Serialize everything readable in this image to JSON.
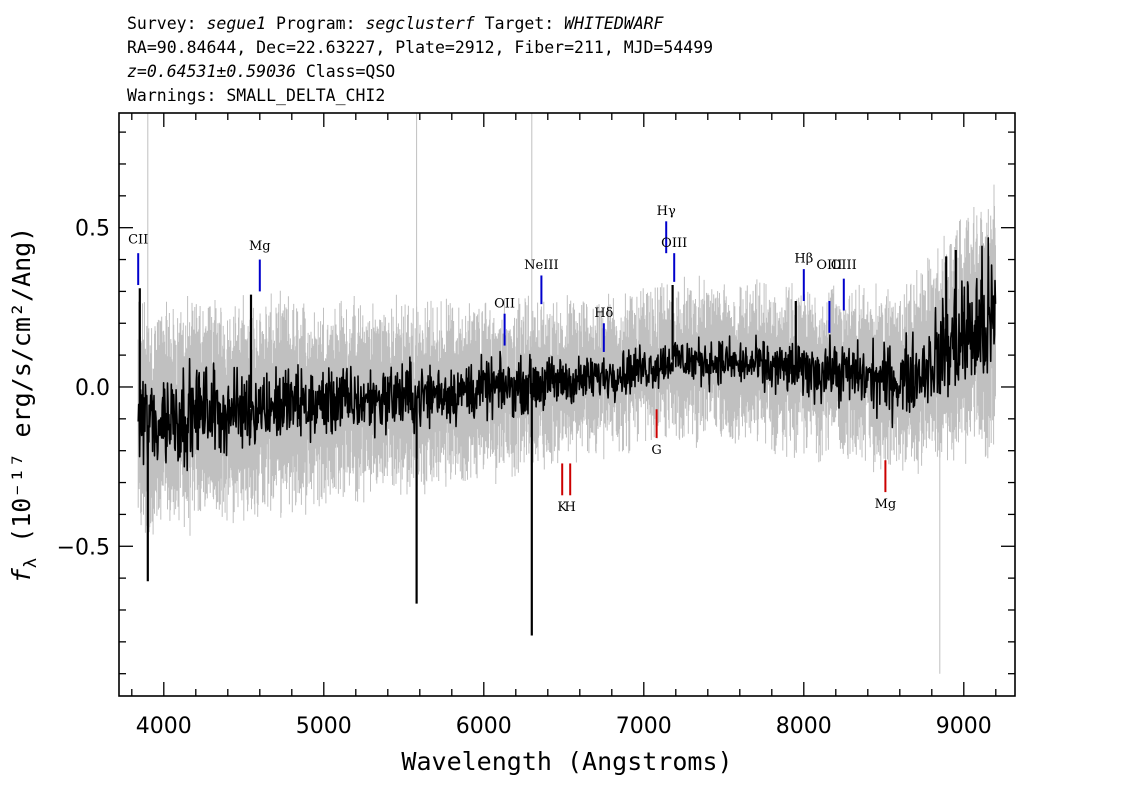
{
  "header": {
    "survey_label": "Survey:",
    "survey": "segue1",
    "program_label": "Program:",
    "program": "segclusterf",
    "target_label": "Target:",
    "target": "WHITEDWARF",
    "line2": "RA=90.84644, Dec=22.63227, Plate=2912, Fiber=211, MJD=54499",
    "redshift": "z=0.64531±0.59036",
    "class_text": "Class=QSO",
    "warnings": "Warnings: SMALL_DELTA_CHI2"
  },
  "chart_data": {
    "type": "line",
    "xlabel": "Wavelength (Angstroms)",
    "ylabel_prefix": "f",
    "ylabel_sub": "λ",
    "ylabel_units": " (10⁻¹⁷ erg/s/cm²/Ang)",
    "xlim": [
      3720,
      9320
    ],
    "ylim": [
      -0.97,
      0.86
    ],
    "x_ticks": [
      4000,
      5000,
      6000,
      7000,
      8000,
      9000
    ],
    "x_tick_labels": [
      "4000",
      "5000",
      "6000",
      "7000",
      "8000",
      "9000"
    ],
    "y_ticks": [
      -0.5,
      0.0,
      0.5
    ],
    "y_tick_labels": [
      "−0.5",
      "0.0",
      "0.5"
    ],
    "x_minor_step": 200,
    "y_minor_step": 0.1,
    "colors": {
      "flux": "#000000",
      "error": "#c0c0c0",
      "emission": "#0000cc",
      "absorption": "#cc0000"
    },
    "series": [
      {
        "role": "flux",
        "x": [
          3840,
          3900,
          4000,
          4100,
          4200,
          4300,
          4400,
          4500,
          4600,
          4700,
          4800,
          4900,
          5000,
          5100,
          5200,
          5300,
          5400,
          5500,
          5600,
          5700,
          5800,
          5900,
          6000,
          6100,
          6200,
          6300,
          6400,
          6500,
          6600,
          6700,
          6800,
          6900,
          7000,
          7100,
          7200,
          7300,
          7400,
          7500,
          7600,
          7700,
          7800,
          7900,
          8000,
          8100,
          8200,
          8300,
          8400,
          8500,
          8600,
          8700,
          8800,
          8900,
          9000,
          9100,
          9200
        ],
        "y": [
          -0.08,
          -0.12,
          -0.1,
          -0.09,
          -0.08,
          -0.07,
          -0.08,
          -0.07,
          -0.06,
          -0.06,
          -0.05,
          -0.06,
          -0.05,
          -0.04,
          -0.05,
          -0.04,
          -0.03,
          -0.03,
          -0.03,
          -0.02,
          -0.02,
          -0.01,
          -0.01,
          0.0,
          0.0,
          0.01,
          0.01,
          0.02,
          0.02,
          0.03,
          0.04,
          0.05,
          0.06,
          0.07,
          0.09,
          0.08,
          0.08,
          0.08,
          0.07,
          0.07,
          0.06,
          0.06,
          0.05,
          0.05,
          0.05,
          0.04,
          0.03,
          0.02,
          0.02,
          0.04,
          0.08,
          0.12,
          0.16,
          0.18,
          0.2
        ],
        "noise": [
          0.12,
          0.15,
          0.14,
          0.13,
          0.12,
          0.12,
          0.11,
          0.11,
          0.1,
          0.1,
          0.1,
          0.1,
          0.1,
          0.09,
          0.09,
          0.09,
          0.09,
          0.09,
          0.09,
          0.08,
          0.08,
          0.08,
          0.08,
          0.07,
          0.07,
          0.07,
          0.07,
          0.07,
          0.06,
          0.06,
          0.06,
          0.06,
          0.06,
          0.06,
          0.06,
          0.06,
          0.06,
          0.06,
          0.06,
          0.06,
          0.07,
          0.07,
          0.07,
          0.08,
          0.08,
          0.08,
          0.09,
          0.09,
          0.1,
          0.1,
          0.12,
          0.15,
          0.17,
          0.19,
          0.21
        ]
      },
      {
        "role": "error",
        "x": [
          3840,
          4000,
          4500,
          5000,
          5500,
          6000,
          6500,
          7000,
          7500,
          8000,
          8500,
          8800,
          9000,
          9200
        ],
        "y": [
          0.28,
          0.27,
          0.25,
          0.23,
          0.21,
          0.19,
          0.17,
          0.16,
          0.16,
          0.17,
          0.2,
          0.24,
          0.28,
          0.32
        ]
      }
    ],
    "spikes": [
      {
        "x": 3850,
        "y": 0.31
      },
      {
        "x": 3900,
        "y": -0.61
      },
      {
        "x": 4545,
        "y": 0.29
      },
      {
        "x": 5580,
        "y": -0.68
      },
      {
        "x": 6300,
        "y": -0.78
      },
      {
        "x": 7180,
        "y": 0.32
      },
      {
        "x": 7950,
        "y": 0.27
      },
      {
        "x": 8890,
        "y": 0.41
      },
      {
        "x": 8950,
        "y": 0.43
      }
    ],
    "error_spikes": [
      {
        "x": 3900,
        "y": 0.86
      },
      {
        "x": 5580,
        "y": 0.86
      },
      {
        "x": 6300,
        "y": 0.86
      },
      {
        "x": 8850,
        "y": -0.9
      }
    ],
    "emission_lines": [
      {
        "label": "CII",
        "x": 3840,
        "y_top": 0.42,
        "y_bottom": 0.32,
        "label_y": 0.45
      },
      {
        "label": "Mg",
        "x": 4600,
        "y_top": 0.4,
        "y_bottom": 0.3,
        "label_y": 0.43
      },
      {
        "label": "OII",
        "x": 6130,
        "y_top": 0.23,
        "y_bottom": 0.13,
        "label_y": 0.25
      },
      {
        "label": "NeIII",
        "x": 6360,
        "y_top": 0.35,
        "y_bottom": 0.26,
        "label_y": 0.37
      },
      {
        "label": "Hδ",
        "x": 6750,
        "y_top": 0.2,
        "y_bottom": 0.11,
        "label_y": 0.22
      },
      {
        "label": "Hγ",
        "x": 7140,
        "y_top": 0.52,
        "y_bottom": 0.42,
        "label_y": 0.54
      },
      {
        "label": "OIII",
        "x": 7190,
        "y_top": 0.42,
        "y_bottom": 0.33,
        "label_y": 0.44
      },
      {
        "label": "Hβ",
        "x": 8000,
        "y_top": 0.37,
        "y_bottom": 0.27,
        "label_y": 0.39
      },
      {
        "label": "OIII",
        "x": 8160,
        "y_top": 0.27,
        "y_bottom": 0.17,
        "label_y": 0.37
      },
      {
        "label": "OIII",
        "x": 8250,
        "y_top": 0.34,
        "y_bottom": 0.24,
        "label_y": 0.37
      }
    ],
    "absorption_lines": [
      {
        "label": "G",
        "x": 7080,
        "y_top": -0.07,
        "y_bottom": -0.16,
        "label_y": -0.21
      },
      {
        "label": "K",
        "x": 6490,
        "y_top": -0.24,
        "y_bottom": -0.34,
        "label_y": -0.39
      },
      {
        "label": "H",
        "x": 6540,
        "y_top": -0.24,
        "y_bottom": -0.34,
        "label_y": -0.39
      },
      {
        "label": "Mg",
        "x": 8510,
        "y_top": -0.23,
        "y_bottom": -0.33,
        "label_y": -0.38
      }
    ]
  }
}
